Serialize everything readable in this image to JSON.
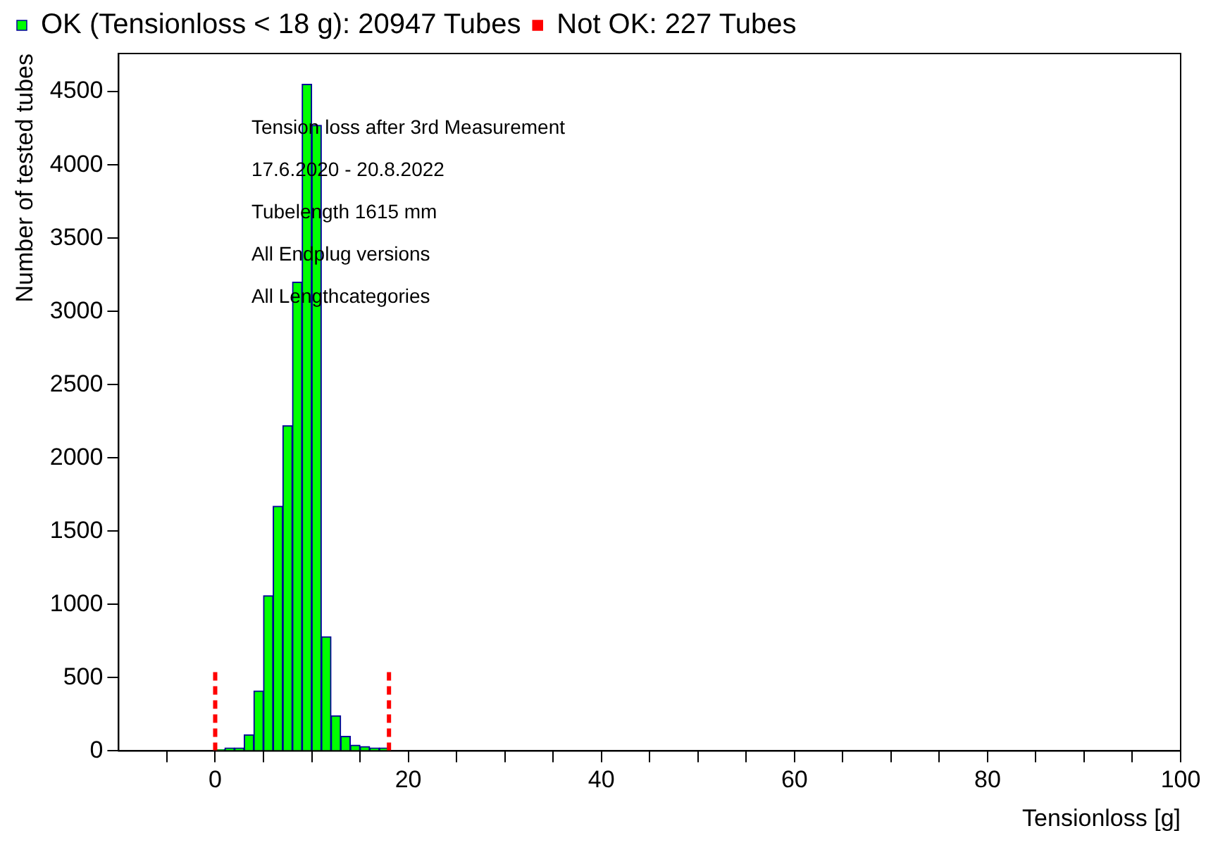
{
  "chart_data": {
    "type": "histogram",
    "xlabel": "Tensionloss [g]",
    "ylabel": "Number of tested tubes",
    "bins": [
      -10,
      -9,
      -8,
      -7,
      -6,
      -5,
      -4,
      -3,
      -2,
      -1,
      0,
      1,
      2,
      3,
      4,
      5,
      6,
      7,
      8,
      9,
      10,
      11,
      12,
      13,
      14,
      15,
      16,
      17,
      18,
      19,
      20,
      21,
      22,
      23,
      24,
      25,
      26,
      27,
      28,
      29,
      30,
      31,
      32,
      33,
      34,
      35,
      36,
      37,
      38,
      39,
      40,
      41,
      42,
      43,
      44,
      45,
      46,
      47,
      48,
      49,
      50,
      51,
      52,
      53,
      54,
      55,
      56,
      57,
      58,
      59,
      60,
      61,
      62,
      63,
      64,
      65,
      66,
      67,
      68,
      69,
      70,
      71,
      72,
      73,
      74,
      75,
      76,
      77,
      78,
      79,
      80,
      81,
      82,
      83,
      84,
      85,
      86,
      87,
      88,
      89,
      90,
      91,
      92,
      93,
      94,
      95,
      96,
      97,
      98,
      99,
      100
    ],
    "series": [
      {
        "name": "OK (Tensionloss < 18 g): 20947 Tubes",
        "color": "#00ff00",
        "values": [
          0,
          0,
          0,
          0,
          0,
          0,
          0,
          0,
          0,
          0,
          10,
          20,
          20,
          110,
          410,
          1060,
          1670,
          2220,
          3200,
          4550,
          4270,
          780,
          240,
          100,
          40,
          30,
          20,
          20,
          0,
          0,
          0,
          0,
          0,
          0,
          0,
          0,
          0,
          0,
          0,
          0,
          0,
          0,
          0,
          0,
          0,
          0,
          0,
          0,
          0,
          0,
          0,
          0,
          0,
          0,
          0,
          0,
          0,
          0,
          0,
          0,
          0,
          0,
          0,
          0,
          0,
          0,
          0,
          0,
          0,
          0,
          0,
          0,
          0,
          0,
          0,
          0,
          0,
          0,
          0,
          0,
          0,
          0,
          0,
          0,
          0,
          0,
          0,
          0,
          0,
          0,
          0,
          0,
          0,
          0,
          0,
          0,
          0,
          0,
          0,
          0,
          0,
          0,
          0,
          0,
          0,
          0,
          0,
          0,
          0,
          0
        ]
      },
      {
        "name": "Not OK: 227 Tubes",
        "color": "#ff0000",
        "values": [
          0,
          0,
          0,
          0,
          0,
          0,
          0,
          0,
          0,
          null,
          0,
          0,
          0,
          0,
          0,
          0,
          0,
          0,
          0,
          0,
          0,
          0,
          0,
          0,
          0,
          0,
          0,
          0,
          null,
          null,
          null,
          0,
          0,
          0,
          0,
          0,
          0,
          0,
          0,
          0,
          0,
          0,
          0,
          0,
          0,
          0,
          0,
          0,
          0,
          0,
          0,
          0,
          0,
          0,
          0,
          0,
          0,
          0,
          0,
          0,
          0,
          0,
          0,
          0,
          0,
          0,
          0,
          0,
          0,
          0,
          0,
          0,
          0,
          0,
          0,
          0,
          0,
          0,
          0,
          0,
          0,
          0,
          0,
          0,
          0,
          0,
          0,
          0,
          0,
          0,
          0,
          0,
          0,
          0,
          0,
          0,
          0,
          0,
          0,
          0,
          0,
          0,
          0,
          0,
          0,
          0,
          0,
          0,
          0,
          0
        ]
      }
    ],
    "xlim": [
      -10,
      100
    ],
    "xticks": [
      {
        "value": -5,
        "label": null
      },
      0,
      {
        "value": 5,
        "label": null
      },
      {
        "value": 10,
        "label": null
      },
      {
        "value": 15,
        "label": null
      },
      20,
      {
        "value": 25,
        "label": null
      },
      {
        "value": 30,
        "label": null
      },
      {
        "value": 35,
        "label": null
      },
      40,
      {
        "value": 45,
        "label": null
      },
      {
        "value": 50,
        "label": null
      },
      {
        "value": 55,
        "label": null
      },
      60,
      {
        "value": 65,
        "label": null
      },
      {
        "value": 70,
        "label": null
      },
      {
        "value": 75,
        "label": null
      },
      80,
      {
        "value": 85,
        "label": null
      },
      {
        "value": 90,
        "label": null
      },
      {
        "value": 95,
        "label": null
      },
      100
    ],
    "ylim": [
      0,
      4760
    ],
    "yticks": [
      0,
      500,
      1000,
      1500,
      2000,
      2500,
      3000,
      3500,
      4000,
      4500
    ],
    "ref_lines": [
      {
        "axis": "x",
        "value": 0,
        "color": "#ff0000",
        "line_style": "dashed"
      },
      {
        "axis": "x",
        "value": 18,
        "color": "#ff0000",
        "line_style": "dashed"
      }
    ],
    "annotations": [
      "Tension loss after 3rd Measurement",
      "17.6.2020 - 20.8.2022",
      "Tubelength 1615 mm",
      "All Endplug versions",
      "All Lengthcategories"
    ],
    "legend": "top",
    "grid": false
  }
}
